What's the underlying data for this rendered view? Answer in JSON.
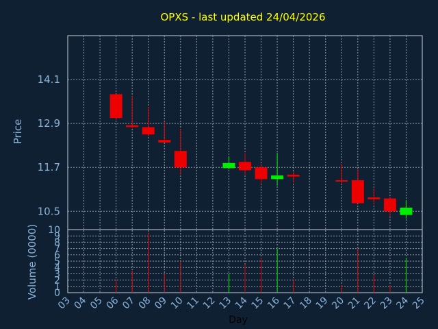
{
  "chart_data": {
    "type": "candlestick",
    "title": "OPXS - last updated 24/04/2026",
    "xlabel": "Day",
    "ylabel": "Price",
    "volume_label": "Volume (0000)",
    "x_ticks": [
      "03",
      "04",
      "05",
      "06",
      "07",
      "08",
      "09",
      "10",
      "11",
      "12",
      "13",
      "14",
      "15",
      "16",
      "17",
      "18",
      "19",
      "20",
      "21",
      "22",
      "23",
      "24",
      "25"
    ],
    "price_ticks": [
      "10.5",
      "11.7",
      "12.9",
      "14.1"
    ],
    "volume_ticks": [
      "0",
      "1",
      "2",
      "3",
      "4",
      "5",
      "6",
      "7",
      "8",
      "9",
      "10"
    ],
    "xlim": [
      3,
      25
    ],
    "ylim": [
      10,
      15.3
    ],
    "volume_ylim": [
      0,
      10
    ],
    "grid": true,
    "colors": {
      "background": "#0f2033",
      "up": "#00ee00",
      "down": "#ee0000",
      "grid": "#c8d0d8",
      "title": "#ffff00",
      "axis_text": "#8ab4d8"
    },
    "candles": [
      {
        "day": 6,
        "open": 13.7,
        "high": 13.7,
        "low": 13.0,
        "close": 13.05,
        "volume": 2.0
      },
      {
        "day": 7,
        "open": 12.85,
        "high": 13.65,
        "low": 12.78,
        "close": 12.8,
        "volume": 3.5
      },
      {
        "day": 8,
        "open": 12.8,
        "high": 13.35,
        "low": 12.55,
        "close": 12.6,
        "volume": 9.5
      },
      {
        "day": 9,
        "open": 12.45,
        "high": 12.95,
        "low": 12.4,
        "close": 12.38,
        "volume": 3.0
      },
      {
        "day": 10,
        "open": 12.15,
        "high": 12.75,
        "low": 11.5,
        "close": 11.7,
        "volume": 5.0
      },
      {
        "day": 13,
        "open": 11.68,
        "high": 12.0,
        "low": 11.65,
        "close": 11.82,
        "volume": 3.0
      },
      {
        "day": 14,
        "open": 11.85,
        "high": 12.1,
        "low": 11.5,
        "close": 11.62,
        "volume": 4.5
      },
      {
        "day": 15,
        "open": 11.7,
        "high": 11.8,
        "low": 11.25,
        "close": 11.38,
        "volume": 5.5
      },
      {
        "day": 16,
        "open": 11.38,
        "high": 12.1,
        "low": 11.2,
        "close": 11.48,
        "volume": 7.0
      },
      {
        "day": 17,
        "open": 11.5,
        "high": 11.58,
        "low": 11.28,
        "close": 11.45,
        "volume": 2.0
      },
      {
        "day": 20,
        "open": 11.35,
        "high": 11.8,
        "low": 11.25,
        "close": 11.33,
        "volume": 1.2
      },
      {
        "day": 21,
        "open": 11.35,
        "high": 11.65,
        "low": 10.72,
        "close": 10.72,
        "volume": 7.0
      },
      {
        "day": 22,
        "open": 10.88,
        "high": 11.12,
        "low": 10.7,
        "close": 10.83,
        "volume": 2.8
      },
      {
        "day": 23,
        "open": 10.85,
        "high": 10.9,
        "low": 10.35,
        "close": 10.5,
        "volume": 1.2
      },
      {
        "day": 24,
        "open": 10.4,
        "high": 10.8,
        "low": 10.3,
        "close": 10.6,
        "volume": 5.5
      }
    ]
  }
}
